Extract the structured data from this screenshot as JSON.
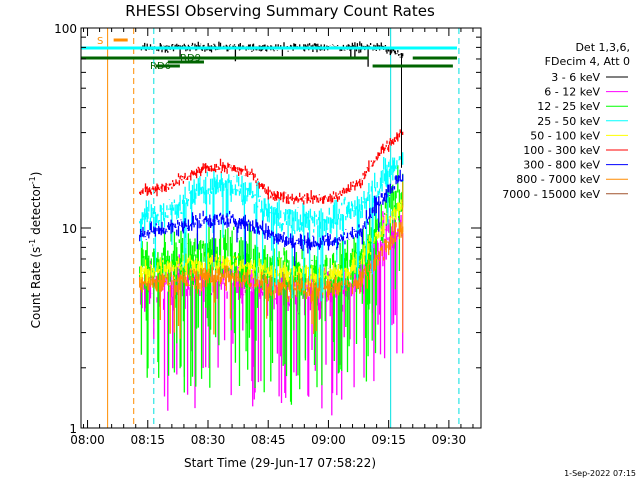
{
  "chart_data": {
    "type": "line",
    "title": "RHESSI Observing Summary Count Rates",
    "xlabel": "Start Time (29-Jun-17 07:58:22)",
    "ylabel_main": "Count Rate (s",
    "ylabel_sup": "-1",
    "ylabel_tail": " detector",
    "ylabel_sup2": "-1",
    "ylabel_close": ")",
    "footer": "1-Sep-2022 07:15",
    "x_ticks": [
      "08:00",
      "08:15",
      "08:30",
      "08:45",
      "09:00",
      "09:15",
      "09:30"
    ],
    "x_tick_minutes": [
      0,
      15,
      30,
      45,
      60,
      75,
      90
    ],
    "x_range_minutes": [
      -1.63,
      98.0
    ],
    "y_ticks": [
      "1",
      "10",
      "100"
    ],
    "y_tick_values": [
      1,
      10,
      100
    ],
    "ylim": [
      1,
      100
    ],
    "yscale": "log",
    "legend_header": [
      "Det 1,3,6,",
      "FDecim 4, Att 0"
    ],
    "legend_position": "right",
    "series": [
      {
        "name": "3 - 6 keV",
        "color": "#000000"
      },
      {
        "name": "6 - 12 keV",
        "color": "#ff00ff"
      },
      {
        "name": "12 - 25 keV",
        "color": "#00ff00"
      },
      {
        "name": "25 - 50 keV",
        "color": "#00ffff"
      },
      {
        "name": "50 - 100 keV",
        "color": "#ffff00"
      },
      {
        "name": "100 - 300 keV",
        "color": "#ff0000"
      },
      {
        "name": "300 - 800 keV",
        "color": "#0000ff"
      },
      {
        "name": "800 - 7000 keV",
        "color": "#ff8c00"
      },
      {
        "name": "7000 - 15000 keV",
        "color": "#a0522d"
      }
    ],
    "flag_labels": [
      "S",
      "RD9",
      "RD6"
    ],
    "time_series": {
      "t": [
        13,
        15,
        20,
        25,
        30,
        35,
        40,
        45,
        50,
        55,
        60,
        65,
        68,
        71,
        73,
        75,
        77,
        78
      ],
      "3-6": [
        80,
        80,
        80,
        80,
        80,
        80,
        80,
        80,
        80,
        80,
        80,
        80,
        80,
        80,
        80,
        78,
        75,
        72
      ],
      "100-300": [
        15,
        15.5,
        16,
        18,
        20,
        20,
        19,
        15,
        14,
        14,
        14,
        15.5,
        17,
        21,
        24,
        26,
        28,
        30
      ],
      "25-50": [
        11,
        11.5,
        12,
        14,
        16,
        16,
        15,
        12,
        11,
        11,
        11,
        12,
        13,
        15,
        17,
        19,
        21,
        23
      ],
      "300-800": [
        9.3,
        9.5,
        10,
        10.5,
        11,
        11,
        10.5,
        9.5,
        8.5,
        8.5,
        8.5,
        9,
        10,
        12,
        14,
        15.5,
        17,
        18
      ],
      "12-25": [
        6.5,
        6.7,
        7,
        7.2,
        7.5,
        7.5,
        7.2,
        6.5,
        6,
        6,
        6,
        6.5,
        7.5,
        9,
        10.5,
        12,
        13,
        14
      ],
      "50-100": [
        6,
        6.1,
        6.3,
        6.5,
        6.8,
        6.8,
        6.5,
        6,
        5.8,
        5.8,
        5.8,
        6,
        7,
        8.5,
        10,
        11,
        12,
        13
      ],
      "6-12": [
        5,
        5.1,
        5.2,
        5.3,
        5.5,
        5.5,
        5.3,
        5,
        4.8,
        4.8,
        4.8,
        5,
        5.5,
        7,
        8,
        9,
        10,
        10
      ],
      "800-7000": [
        5.3,
        5.3,
        5.4,
        5.5,
        5.7,
        5.7,
        5.5,
        5.2,
        5,
        5,
        5,
        5.2,
        5.5,
        6.5,
        7.5,
        8.5,
        9.5,
        10
      ]
    }
  }
}
